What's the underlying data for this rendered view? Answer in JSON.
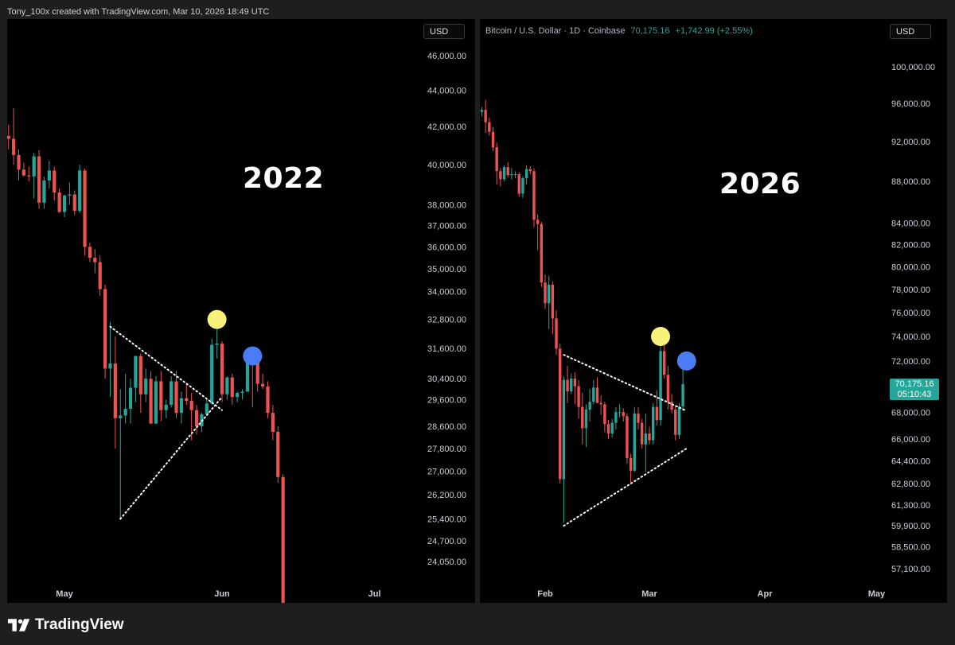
{
  "attribution": "Tony_100x created with TradingView.com, Mar 10, 2026 18:49 UTC",
  "brand": "TradingView",
  "colors": {
    "up": "#26a69a",
    "down": "#ef5350",
    "background": "#000000",
    "frame": "#1e1e1e",
    "marker_yellow": "#f7f37a",
    "marker_blue": "#4a7cf5"
  },
  "chart_data": [
    {
      "type": "candlestick",
      "panel": "left",
      "annotation_label": "2022",
      "currency_button": "USD",
      "y_scale": "log",
      "y_ticks": [
        46000,
        44000,
        42000,
        40000,
        38000,
        37000,
        36000,
        35000,
        34000,
        32800,
        31600,
        30400,
        29600,
        28600,
        27800,
        27000,
        26200,
        25400,
        24700,
        24050
      ],
      "y_tick_labels": [
        "46,000.00",
        "44,000.00",
        "42,000.00",
        "40,000.00",
        "38,000.00",
        "37,000.00",
        "36,000.00",
        "35,000.00",
        "34,000.00",
        "32,800.00",
        "31,600.00",
        "30,400.00",
        "29,600.00",
        "28,600.00",
        "27,800.00",
        "27,000.00",
        "26,200.00",
        "25,400.00",
        "24,700.00",
        "24,050.00"
      ],
      "x_ticks": [
        "May",
        "Jun",
        "Jul"
      ],
      "x_tick_dates": [
        "2022-05-01",
        "2022-06-01",
        "2022-07-01"
      ],
      "x_range": [
        "2022-04-18",
        "2022-07-18"
      ],
      "candles": [
        {
          "d": "2022-04-20",
          "o": 41500,
          "h": 42100,
          "l": 40800,
          "c": 41350
        },
        {
          "d": "2022-04-21",
          "o": 41350,
          "h": 43000,
          "l": 40000,
          "c": 40500
        },
        {
          "d": "2022-04-22",
          "o": 40500,
          "h": 40800,
          "l": 39200,
          "c": 39750
        },
        {
          "d": "2022-04-23",
          "o": 39750,
          "h": 40100,
          "l": 39400,
          "c": 39450
        },
        {
          "d": "2022-04-24",
          "o": 39450,
          "h": 39900,
          "l": 39150,
          "c": 39400
        },
        {
          "d": "2022-04-25",
          "o": 39400,
          "h": 40600,
          "l": 38300,
          "c": 40430
        },
        {
          "d": "2022-04-26",
          "o": 40430,
          "h": 40750,
          "l": 37800,
          "c": 38100
        },
        {
          "d": "2022-04-27",
          "o": 38100,
          "h": 39400,
          "l": 37800,
          "c": 39200
        },
        {
          "d": "2022-04-28",
          "o": 39200,
          "h": 40200,
          "l": 38800,
          "c": 39700
        },
        {
          "d": "2022-04-29",
          "o": 39700,
          "h": 39900,
          "l": 38200,
          "c": 38600
        },
        {
          "d": "2022-04-30",
          "o": 38600,
          "h": 38800,
          "l": 37600,
          "c": 37650
        },
        {
          "d": "2022-05-01",
          "o": 37650,
          "h": 38500,
          "l": 37400,
          "c": 38450
        },
        {
          "d": "2022-05-02",
          "o": 38450,
          "h": 39100,
          "l": 38000,
          "c": 38500
        },
        {
          "d": "2022-05-03",
          "o": 38500,
          "h": 38700,
          "l": 37500,
          "c": 37700
        },
        {
          "d": "2022-05-04",
          "o": 37700,
          "h": 40000,
          "l": 37600,
          "c": 39700
        },
        {
          "d": "2022-05-05",
          "o": 39700,
          "h": 39800,
          "l": 35600,
          "c": 36000
        },
        {
          "d": "2022-05-06",
          "o": 36000,
          "h": 36200,
          "l": 35300,
          "c": 35500
        },
        {
          "d": "2022-05-07",
          "o": 35500,
          "h": 35900,
          "l": 34800,
          "c": 35300
        },
        {
          "d": "2022-05-08",
          "o": 35300,
          "h": 35600,
          "l": 33800,
          "c": 34100
        },
        {
          "d": "2022-05-09",
          "o": 34100,
          "h": 34300,
          "l": 30400,
          "c": 30800
        },
        {
          "d": "2022-05-10",
          "o": 30800,
          "h": 32700,
          "l": 29700,
          "c": 31000
        },
        {
          "d": "2022-05-11",
          "o": 31000,
          "h": 32100,
          "l": 27800,
          "c": 28900
        },
        {
          "d": "2022-05-12",
          "o": 28900,
          "h": 30000,
          "l": 25400,
          "c": 29000
        },
        {
          "d": "2022-05-13",
          "o": 29000,
          "h": 30600,
          "l": 28700,
          "c": 29250
        },
        {
          "d": "2022-05-14",
          "o": 29250,
          "h": 30400,
          "l": 28700,
          "c": 30050
        },
        {
          "d": "2022-05-15",
          "o": 30050,
          "h": 31300,
          "l": 29500,
          "c": 31300
        },
        {
          "d": "2022-05-16",
          "o": 31300,
          "h": 31400,
          "l": 29100,
          "c": 29800
        },
        {
          "d": "2022-05-17",
          "o": 29800,
          "h": 30800,
          "l": 29500,
          "c": 30400
        },
        {
          "d": "2022-05-18",
          "o": 30400,
          "h": 30700,
          "l": 28700,
          "c": 28700
        },
        {
          "d": "2022-05-19",
          "o": 28700,
          "h": 30500,
          "l": 28700,
          "c": 30300
        },
        {
          "d": "2022-05-20",
          "o": 30300,
          "h": 30700,
          "l": 28800,
          "c": 29200
        },
        {
          "d": "2022-05-21",
          "o": 29200,
          "h": 29600,
          "l": 28900,
          "c": 29400
        },
        {
          "d": "2022-05-22",
          "o": 29400,
          "h": 30500,
          "l": 29300,
          "c": 30300
        },
        {
          "d": "2022-05-23",
          "o": 30300,
          "h": 30700,
          "l": 28900,
          "c": 29100
        },
        {
          "d": "2022-05-24",
          "o": 29100,
          "h": 29900,
          "l": 28700,
          "c": 29650
        },
        {
          "d": "2022-05-25",
          "o": 29650,
          "h": 30200,
          "l": 29400,
          "c": 29550
        },
        {
          "d": "2022-05-26",
          "o": 29550,
          "h": 29850,
          "l": 28100,
          "c": 29200
        },
        {
          "d": "2022-05-27",
          "o": 29200,
          "h": 29400,
          "l": 28300,
          "c": 28600
        },
        {
          "d": "2022-05-28",
          "o": 28600,
          "h": 29100,
          "l": 28400,
          "c": 29050
        },
        {
          "d": "2022-05-29",
          "o": 29050,
          "h": 29600,
          "l": 29000,
          "c": 29450
        },
        {
          "d": "2022-05-30",
          "o": 29450,
          "h": 32000,
          "l": 29400,
          "c": 31750
        },
        {
          "d": "2022-05-31",
          "o": 31750,
          "h": 32400,
          "l": 31200,
          "c": 31800
        },
        {
          "d": "2022-06-01",
          "o": 31800,
          "h": 31900,
          "l": 29500,
          "c": 29800
        },
        {
          "d": "2022-06-02",
          "o": 29800,
          "h": 30500,
          "l": 29600,
          "c": 30450
        },
        {
          "d": "2022-06-03",
          "o": 30450,
          "h": 30600,
          "l": 29400,
          "c": 29700
        },
        {
          "d": "2022-06-04",
          "o": 29700,
          "h": 29900,
          "l": 29500,
          "c": 29850
        },
        {
          "d": "2022-06-05",
          "o": 29850,
          "h": 30000,
          "l": 29600,
          "c": 29900
        },
        {
          "d": "2022-06-06",
          "o": 29900,
          "h": 31600,
          "l": 29900,
          "c": 31400
        },
        {
          "d": "2022-06-07",
          "o": 31400,
          "h": 31500,
          "l": 29300,
          "c": 31100
        },
        {
          "d": "2022-06-08",
          "o": 31100,
          "h": 31300,
          "l": 29900,
          "c": 30200
        },
        {
          "d": "2022-06-09",
          "o": 30200,
          "h": 30600,
          "l": 30000,
          "c": 30100
        },
        {
          "d": "2022-06-10",
          "o": 30100,
          "h": 30300,
          "l": 28900,
          "c": 29100
        },
        {
          "d": "2022-06-11",
          "o": 29100,
          "h": 29400,
          "l": 28100,
          "c": 28400
        },
        {
          "d": "2022-06-12",
          "o": 28400,
          "h": 28600,
          "l": 26600,
          "c": 26800
        },
        {
          "d": "2022-06-13",
          "o": 26800,
          "h": 26900,
          "l": 22000,
          "c": 22500
        }
      ],
      "markers": [
        {
          "color": "yellow",
          "d": "2022-05-31",
          "price": 32800
        },
        {
          "color": "blue",
          "d": "2022-06-07",
          "price": 31300
        }
      ],
      "trendlines": [
        {
          "style": "dotted",
          "from": {
            "d": "2022-05-10",
            "price": 32500
          },
          "to": {
            "d": "2022-06-01",
            "price": 29200
          }
        },
        {
          "style": "dotted",
          "from": {
            "d": "2022-05-12",
            "price": 25400
          },
          "to": {
            "d": "2022-06-01",
            "price": 29700
          }
        }
      ]
    },
    {
      "type": "candlestick",
      "panel": "right",
      "title": "Bitcoin / U.S. Dollar · 1D · Coinbase",
      "last_price": "70,175.16",
      "change": "+1,742.99 (+2.55%)",
      "annotation_label": "2026",
      "currency_button": "USD",
      "last_price_tag": {
        "price": "70,175.16",
        "countdown": "05:10:43"
      },
      "y_scale": "log",
      "y_ticks": [
        100000,
        96000,
        92000,
        88000,
        84000,
        82000,
        80000,
        78000,
        76000,
        74000,
        72000,
        68000,
        66000,
        64400,
        62800,
        61300,
        59900,
        58500,
        57100
      ],
      "y_tick_labels": [
        "100,000.00",
        "96,000.00",
        "92,000.00",
        "88,000.00",
        "84,000.00",
        "82,000.00",
        "80,000.00",
        "78,000.00",
        "76,000.00",
        "74,000.00",
        "72,000.00",
        "68,000.00",
        "66,000.00",
        "64,400.00",
        "62,800.00",
        "61,300.00",
        "59,900.00",
        "58,500.00",
        "57,100.00"
      ],
      "x_ticks": [
        "Feb",
        "Mar",
        "Apr",
        "May"
      ],
      "x_tick_dates": [
        "2026-02-01",
        "2026-03-01",
        "2026-04-01",
        "2026-05-01"
      ],
      "x_range": [
        "2026-01-12",
        "2026-05-09"
      ],
      "candles": [
        {
          "d": "2026-01-12",
          "o": 96300,
          "h": 98000,
          "l": 95600,
          "c": 97000
        },
        {
          "d": "2026-01-13",
          "o": 97000,
          "h": 97500,
          "l": 95000,
          "c": 95300
        },
        {
          "d": "2026-01-14",
          "o": 95300,
          "h": 95900,
          "l": 94700,
          "c": 95100
        },
        {
          "d": "2026-01-15",
          "o": 95100,
          "h": 95600,
          "l": 94600,
          "c": 95300
        },
        {
          "d": "2026-01-16",
          "o": 95300,
          "h": 96400,
          "l": 92900,
          "c": 94000
        },
        {
          "d": "2026-01-17",
          "o": 94000,
          "h": 94500,
          "l": 92600,
          "c": 93000
        },
        {
          "d": "2026-01-18",
          "o": 93000,
          "h": 93500,
          "l": 91000,
          "c": 91400
        },
        {
          "d": "2026-01-19",
          "o": 91400,
          "h": 91900,
          "l": 87700,
          "c": 89000
        },
        {
          "d": "2026-01-20",
          "o": 89000,
          "h": 89300,
          "l": 87500,
          "c": 88200
        },
        {
          "d": "2026-01-21",
          "o": 88200,
          "h": 89600,
          "l": 88000,
          "c": 89400
        },
        {
          "d": "2026-01-22",
          "o": 89400,
          "h": 89900,
          "l": 88400,
          "c": 88600
        },
        {
          "d": "2026-01-23",
          "o": 88600,
          "h": 89300,
          "l": 88200,
          "c": 88700
        },
        {
          "d": "2026-01-24",
          "o": 88700,
          "h": 89000,
          "l": 88300,
          "c": 88700
        },
        {
          "d": "2026-01-25",
          "o": 88700,
          "h": 88900,
          "l": 86500,
          "c": 86800
        },
        {
          "d": "2026-01-26",
          "o": 86800,
          "h": 88500,
          "l": 86400,
          "c": 88300
        },
        {
          "d": "2026-01-27",
          "o": 88300,
          "h": 89600,
          "l": 87700,
          "c": 89200
        },
        {
          "d": "2026-01-28",
          "o": 89200,
          "h": 89500,
          "l": 88700,
          "c": 89000
        },
        {
          "d": "2026-01-29",
          "o": 89000,
          "h": 89300,
          "l": 83600,
          "c": 84300
        },
        {
          "d": "2026-01-30",
          "o": 84300,
          "h": 84800,
          "l": 81500,
          "c": 83900
        },
        {
          "d": "2026-01-31",
          "o": 83900,
          "h": 84100,
          "l": 78200,
          "c": 78600
        },
        {
          "d": "2026-02-01",
          "o": 78600,
          "h": 79300,
          "l": 76300,
          "c": 76800
        },
        {
          "d": "2026-02-02",
          "o": 76800,
          "h": 79200,
          "l": 74600,
          "c": 78400
        },
        {
          "d": "2026-02-03",
          "o": 78400,
          "h": 78700,
          "l": 74200,
          "c": 75500
        },
        {
          "d": "2026-02-04",
          "o": 75500,
          "h": 76200,
          "l": 72500,
          "c": 73000
        },
        {
          "d": "2026-02-05",
          "o": 73000,
          "h": 73400,
          "l": 62800,
          "c": 63100
        },
        {
          "d": "2026-02-06",
          "o": 63100,
          "h": 70800,
          "l": 60100,
          "c": 70500
        },
        {
          "d": "2026-02-07",
          "o": 70500,
          "h": 71600,
          "l": 68700,
          "c": 69600
        },
        {
          "d": "2026-02-08",
          "o": 69600,
          "h": 71000,
          "l": 69400,
          "c": 70600
        },
        {
          "d": "2026-02-09",
          "o": 70600,
          "h": 71100,
          "l": 68600,
          "c": 70000
        },
        {
          "d": "2026-02-10",
          "o": 70000,
          "h": 70500,
          "l": 67500,
          "c": 68400
        },
        {
          "d": "2026-02-11",
          "o": 68400,
          "h": 69500,
          "l": 65600,
          "c": 66800
        },
        {
          "d": "2026-02-12",
          "o": 66800,
          "h": 68600,
          "l": 65400,
          "c": 68200
        },
        {
          "d": "2026-02-13",
          "o": 68200,
          "h": 69800,
          "l": 67300,
          "c": 68800
        },
        {
          "d": "2026-02-14",
          "o": 68800,
          "h": 70500,
          "l": 68600,
          "c": 69900
        },
        {
          "d": "2026-02-15",
          "o": 69900,
          "h": 70700,
          "l": 68700,
          "c": 68700
        },
        {
          "d": "2026-02-16",
          "o": 68700,
          "h": 69300,
          "l": 67800,
          "c": 68600
        },
        {
          "d": "2026-02-17",
          "o": 68600,
          "h": 68800,
          "l": 66500,
          "c": 67100
        },
        {
          "d": "2026-02-18",
          "o": 67100,
          "h": 67400,
          "l": 66000,
          "c": 66400
        },
        {
          "d": "2026-02-19",
          "o": 66400,
          "h": 67500,
          "l": 66100,
          "c": 67200
        },
        {
          "d": "2026-02-20",
          "o": 67200,
          "h": 68400,
          "l": 66700,
          "c": 68000
        },
        {
          "d": "2026-02-21",
          "o": 68000,
          "h": 68600,
          "l": 67600,
          "c": 68000
        },
        {
          "d": "2026-02-22",
          "o": 68000,
          "h": 68300,
          "l": 67300,
          "c": 67700
        },
        {
          "d": "2026-02-23",
          "o": 67700,
          "h": 67900,
          "l": 64200,
          "c": 64600
        },
        {
          "d": "2026-02-24",
          "o": 64600,
          "h": 64900,
          "l": 62800,
          "c": 63700
        },
        {
          "d": "2026-02-25",
          "o": 63700,
          "h": 68400,
          "l": 63600,
          "c": 67900
        },
        {
          "d": "2026-02-26",
          "o": 67900,
          "h": 68400,
          "l": 66700,
          "c": 67200
        },
        {
          "d": "2026-02-27",
          "o": 67200,
          "h": 67500,
          "l": 65300,
          "c": 65600
        },
        {
          "d": "2026-02-28",
          "o": 65600,
          "h": 67900,
          "l": 63600,
          "c": 66400
        },
        {
          "d": "2026-03-01",
          "o": 66400,
          "h": 66900,
          "l": 65600,
          "c": 65900
        },
        {
          "d": "2026-03-02",
          "o": 65900,
          "h": 68700,
          "l": 65600,
          "c": 68400
        },
        {
          "d": "2026-03-03",
          "o": 68400,
          "h": 69700,
          "l": 67000,
          "c": 67400
        },
        {
          "d": "2026-03-04",
          "o": 67400,
          "h": 73900,
          "l": 67000,
          "c": 72800
        },
        {
          "d": "2026-03-05",
          "o": 72800,
          "h": 73600,
          "l": 70600,
          "c": 70900
        },
        {
          "d": "2026-03-06",
          "o": 70900,
          "h": 71600,
          "l": 68200,
          "c": 68800
        },
        {
          "d": "2026-03-07",
          "o": 68800,
          "h": 69400,
          "l": 67900,
          "c": 68200
        },
        {
          "d": "2026-03-08",
          "o": 68200,
          "h": 68500,
          "l": 65900,
          "c": 66300
        },
        {
          "d": "2026-03-09",
          "o": 66300,
          "h": 68700,
          "l": 66000,
          "c": 68432
        },
        {
          "d": "2026-03-10",
          "o": 68432,
          "h": 71900,
          "l": 68100,
          "c": 70175
        }
      ],
      "markers": [
        {
          "color": "yellow",
          "d": "2026-03-04",
          "price": 74000
        },
        {
          "color": "blue",
          "d": "2026-03-11",
          "price": 72000
        }
      ],
      "trendlines": [
        {
          "style": "dotted",
          "from": {
            "d": "2026-02-06",
            "price": 72500
          },
          "to": {
            "d": "2026-03-11",
            "price": 68100
          }
        },
        {
          "style": "dotted",
          "from": {
            "d": "2026-02-06",
            "price": 59900
          },
          "to": {
            "d": "2026-03-11",
            "price": 65300
          }
        }
      ]
    }
  ]
}
